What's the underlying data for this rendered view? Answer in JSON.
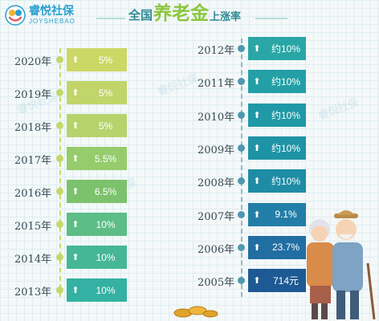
{
  "header": {
    "logo_name": "睿悦社保",
    "logo_sub": "JOYSHEBAO",
    "title_prefix": "全国",
    "title_highlight": "养老金",
    "title_suffix": "上涨率"
  },
  "watermarks": [
    "睿悦社保",
    "睿悦社保",
    "睿悦社保",
    "睿悦社保"
  ],
  "colors": {
    "left_light": "#c8d96a",
    "left_mid": "#86c86b",
    "left_teal": "#3fb79f",
    "right_teal": "#1f97a5",
    "right_blue": "#2a76a8",
    "right_navy": "#1d5891",
    "year_dot_left": "#c3d86b",
    "year_dot_right": "#4f98b0"
  },
  "chart_data": {
    "type": "table",
    "left_column": [
      {
        "year": "2020年",
        "rate": "5%",
        "color": "#cbd865"
      },
      {
        "year": "2019年",
        "rate": "5%",
        "color": "#c2d56a"
      },
      {
        "year": "2018年",
        "rate": "5%",
        "color": "#b5d46c"
      },
      {
        "year": "2017年",
        "rate": "5.5%",
        "color": "#96cc6c"
      },
      {
        "year": "2016年",
        "rate": "6.5%",
        "color": "#7cc26c"
      },
      {
        "year": "2015年",
        "rate": "10%",
        "color": "#5cbd86"
      },
      {
        "year": "2014年",
        "rate": "10%",
        "color": "#45b796"
      },
      {
        "year": "2013年",
        "rate": "10%",
        "color": "#34b1a2"
      }
    ],
    "right_column": [
      {
        "year": "2012年",
        "rate": "约10%",
        "color": "#2aa6a6"
      },
      {
        "year": "2011年",
        "rate": "约10%",
        "color": "#22a0a6"
      },
      {
        "year": "2010年",
        "rate": "约10%",
        "color": "#1f99a6"
      },
      {
        "year": "2009年",
        "rate": "约10%",
        "color": "#1f93a6"
      },
      {
        "year": "2008年",
        "rate": "约10%",
        "color": "#1f8ca5"
      },
      {
        "year": "2007年",
        "rate": "9.1%",
        "color": "#237ea7"
      },
      {
        "year": "2006年",
        "rate": "23.7%",
        "color": "#216ea2"
      },
      {
        "year": "2005年",
        "rate": "714元",
        "color": "#1d5a93"
      }
    ]
  }
}
